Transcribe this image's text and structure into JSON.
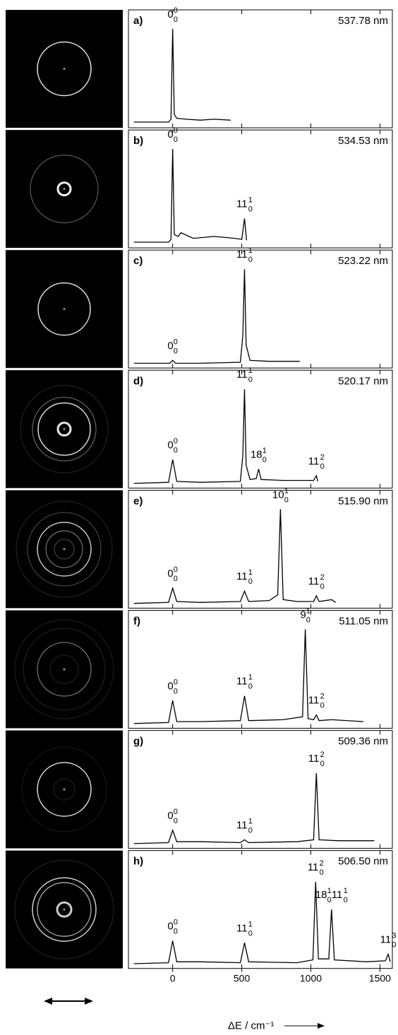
{
  "chart_data": [
    {
      "type": "line",
      "label": "a)",
      "title": "537.78 nm",
      "x": [
        -280,
        -30,
        -12,
        0,
        12,
        30,
        100,
        200,
        300,
        420
      ],
      "values": [
        0.02,
        0.02,
        0.05,
        1,
        0.1,
        0.06,
        0.05,
        0.04,
        0.05,
        0.04
      ],
      "xlim": [
        -320,
        1590
      ],
      "ylim": [
        -0.04,
        1.2
      ],
      "xticks": [
        0,
        500,
        1000,
        1500
      ],
      "annotations": [
        {
          "x": 0,
          "text": [
            {
              "base": "0",
              "sup": "0",
              "sub": "0"
            }
          ]
        }
      ]
    },
    {
      "type": "line",
      "label": "b)",
      "title": "534.53 nm",
      "x": [
        -280,
        -30,
        -12,
        0,
        12,
        40,
        60,
        150,
        300,
        450,
        500,
        520,
        535
      ],
      "values": [
        0.02,
        0.02,
        0.05,
        1,
        0.1,
        0.08,
        0.12,
        0.06,
        0.08,
        0.06,
        0.05,
        0.27,
        0.04
      ],
      "xlim": [
        -320,
        1590
      ],
      "ylim": [
        -0.04,
        1.2
      ],
      "xticks": [
        0,
        500,
        1000,
        1500
      ],
      "annotations": [
        {
          "x": 0,
          "text": [
            {
              "base": "0",
              "sup": "0",
              "sub": "0"
            }
          ]
        },
        {
          "x": 520,
          "text": [
            {
              "base": "11",
              "sup": "1",
              "sub": "0"
            }
          ]
        }
      ]
    },
    {
      "type": "line",
      "label": "c)",
      "title": "523.22 nm",
      "x": [
        -280,
        -20,
        0,
        20,
        200,
        490,
        508,
        520,
        532,
        560,
        700,
        920
      ],
      "values": [
        0.01,
        0.01,
        0.04,
        0.01,
        0.01,
        0.02,
        0.3,
        1,
        0.2,
        0.04,
        0.03,
        0.03
      ],
      "xlim": [
        -320,
        1590
      ],
      "ylim": [
        -0.04,
        1.2
      ],
      "xticks": [
        0,
        500,
        1000,
        1500
      ],
      "annotations": [
        {
          "x": 0,
          "text": [
            {
              "base": "0",
              "sup": "0",
              "sub": "0"
            }
          ]
        },
        {
          "x": 520,
          "text": [
            {
              "base": "11",
              "sup": "1",
              "sub": "0"
            }
          ]
        }
      ]
    },
    {
      "type": "line",
      "label": "d)",
      "title": "520.17 nm",
      "x": [
        -280,
        -30,
        0,
        30,
        200,
        490,
        508,
        520,
        532,
        560,
        605,
        622,
        640,
        800,
        1020,
        1040,
        1050
      ],
      "values": [
        0.01,
        0.02,
        0.26,
        0.03,
        0.02,
        0.03,
        0.3,
        1,
        0.2,
        0.05,
        0.06,
        0.16,
        0.05,
        0.04,
        0.04,
        0.09,
        0.03
      ],
      "xlim": [
        -320,
        1590
      ],
      "ylim": [
        -0.04,
        1.2
      ],
      "xticks": [
        0,
        500,
        1000,
        1500
      ],
      "annotations": [
        {
          "x": 0,
          "text": [
            {
              "base": "0",
              "sup": "0",
              "sub": "0"
            }
          ]
        },
        {
          "x": 520,
          "text": [
            {
              "base": "11",
              "sup": "1",
              "sub": "0"
            }
          ]
        },
        {
          "x": 622,
          "text": [
            {
              "base": "18",
              "sup": "1",
              "sub": "0"
            }
          ]
        },
        {
          "x": 1040,
          "text": [
            {
              "base": "11",
              "sup": "2",
              "sub": "0"
            }
          ]
        }
      ]
    },
    {
      "type": "line",
      "label": "e)",
      "title": "515.90 nm",
      "x": [
        -280,
        -30,
        0,
        30,
        200,
        490,
        520,
        550,
        700,
        760,
        780,
        800,
        900,
        1020,
        1040,
        1060,
        1150,
        1180
      ],
      "values": [
        0.01,
        0.02,
        0.17,
        0.03,
        0.02,
        0.03,
        0.14,
        0.03,
        0.04,
        0.1,
        1,
        0.05,
        0.03,
        0.03,
        0.09,
        0.03,
        0.05,
        0.02
      ],
      "xlim": [
        -320,
        1590
      ],
      "ylim": [
        -0.04,
        1.2
      ],
      "xticks": [
        0,
        500,
        1000,
        1500
      ],
      "annotations": [
        {
          "x": 0,
          "text": [
            {
              "base": "0",
              "sup": "0",
              "sub": "0"
            }
          ]
        },
        {
          "x": 520,
          "text": [
            {
              "base": "11",
              "sup": "1",
              "sub": "0"
            }
          ]
        },
        {
          "x": 780,
          "text": [
            {
              "base": "10",
              "sup": "1",
              "sub": "0"
            }
          ]
        },
        {
          "x": 1040,
          "text": [
            {
              "base": "11",
              "sup": "2",
              "sub": "0"
            }
          ]
        }
      ]
    },
    {
      "type": "line",
      "label": "f)",
      "title": "511.05 nm",
      "x": [
        -280,
        -30,
        0,
        30,
        200,
        490,
        520,
        550,
        800,
        940,
        960,
        980,
        1020,
        1040,
        1060,
        1150,
        1380
      ],
      "values": [
        0.01,
        0.02,
        0.25,
        0.03,
        0.03,
        0.04,
        0.3,
        0.04,
        0.05,
        0.08,
        1,
        0.06,
        0.05,
        0.1,
        0.04,
        0.05,
        0.03
      ],
      "xlim": [
        -320,
        1590
      ],
      "ylim": [
        -0.04,
        1.2
      ],
      "xticks": [
        0,
        500,
        1000,
        1500
      ],
      "annotations": [
        {
          "x": 0,
          "text": [
            {
              "base": "0",
              "sup": "0",
              "sub": "0"
            }
          ]
        },
        {
          "x": 520,
          "text": [
            {
              "base": "11",
              "sup": "1",
              "sub": "0"
            }
          ]
        },
        {
          "x": 960,
          "text": [
            {
              "base": "9",
              "sup": "1",
              "sub": "0"
            }
          ]
        },
        {
          "x": 1040,
          "text": [
            {
              "base": "11",
              "sup": "2",
              "sub": "0"
            }
          ]
        }
      ]
    },
    {
      "type": "line",
      "label": "g)",
      "title": "509.36 nm",
      "x": [
        -280,
        -30,
        0,
        30,
        200,
        490,
        520,
        550,
        900,
        1020,
        1040,
        1060,
        1200,
        1460
      ],
      "values": [
        0.01,
        0.02,
        0.15,
        0.03,
        0.03,
        0.02,
        0.05,
        0.02,
        0.03,
        0.05,
        0.75,
        0.05,
        0.04,
        0.04
      ],
      "xlim": [
        -320,
        1590
      ],
      "ylim": [
        -0.04,
        1.2
      ],
      "xticks": [
        0,
        500,
        1000,
        1500
      ],
      "annotations": [
        {
          "x": 0,
          "text": [
            {
              "base": "0",
              "sup": "0",
              "sub": "0"
            }
          ]
        },
        {
          "x": 520,
          "text": [
            {
              "base": "11",
              "sup": "1",
              "sub": "0"
            }
          ]
        },
        {
          "x": 1040,
          "text": [
            {
              "base": "11",
              "sup": "2",
              "sub": "0"
            }
          ]
        }
      ]
    },
    {
      "type": "line",
      "label": "h)",
      "title": "506.50 nm",
      "x": [
        -280,
        -30,
        0,
        30,
        200,
        490,
        520,
        550,
        900,
        1015,
        1035,
        1055,
        1130,
        1150,
        1170,
        1400,
        1540,
        1560,
        1575
      ],
      "values": [
        0.01,
        0.02,
        0.25,
        0.03,
        0.03,
        0.02,
        0.23,
        0.03,
        0.02,
        0.05,
        0.87,
        0.06,
        0.06,
        0.58,
        0.05,
        0.03,
        0.04,
        0.11,
        0.03
      ],
      "xlim": [
        -320,
        1590
      ],
      "ylim": [
        -0.04,
        1.2
      ],
      "xticks": [
        0,
        500,
        1000,
        1500
      ],
      "xlabel": "ΔE / cm⁻¹",
      "annotations": [
        {
          "x": 0,
          "text": [
            {
              "base": "0",
              "sup": "0",
              "sub": "0"
            }
          ]
        },
        {
          "x": 520,
          "text": [
            {
              "base": "11",
              "sup": "1",
              "sub": "0"
            }
          ]
        },
        {
          "x": 1035,
          "text": [
            {
              "base": "11",
              "sup": "2",
              "sub": "0"
            }
          ]
        },
        {
          "x": 1150,
          "text": [
            {
              "base": "18",
              "sup": "1",
              "sub": "0"
            },
            {
              "base": "11",
              "sup": "1",
              "sub": "0"
            }
          ]
        },
        {
          "x": 1560,
          "text": [
            {
              "base": "11",
              "sup": "3",
              "sub": "0"
            }
          ]
        }
      ]
    }
  ]
}
